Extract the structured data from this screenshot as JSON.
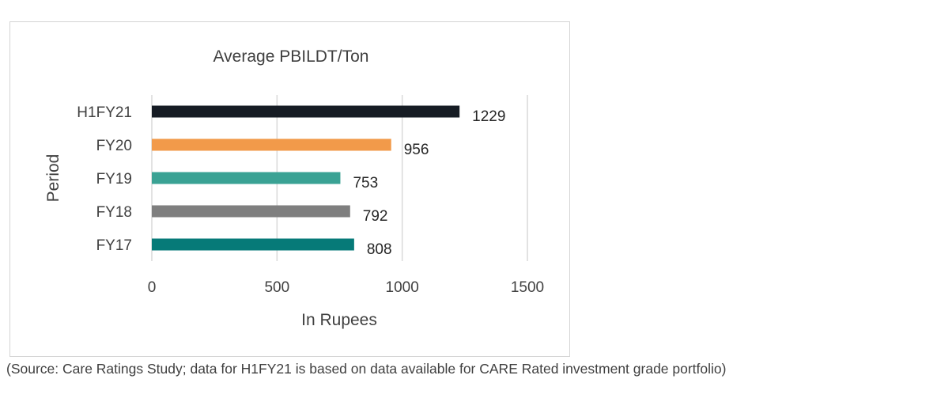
{
  "chart_data": {
    "type": "bar",
    "orientation": "horizontal",
    "title": "Average PBILDT/Ton",
    "xlabel": "In Rupees",
    "ylabel": "Period",
    "categories": [
      "H1FY21",
      "FY20",
      "FY19",
      "FY18",
      "FY17"
    ],
    "values": [
      1229,
      956,
      753,
      792,
      808
    ],
    "colors": [
      "#161c24",
      "#f29a4a",
      "#3aa294",
      "#7f7f7f",
      "#067a78"
    ],
    "xlim": [
      0,
      1500
    ],
    "xticks": [
      "0",
      "500",
      "1000",
      "1500"
    ],
    "grid": true,
    "legend": "none",
    "data_labels": true
  },
  "source": "(Source: Care Ratings Study; data for H1FY21 is based on data available for CARE Rated investment grade portfolio)"
}
